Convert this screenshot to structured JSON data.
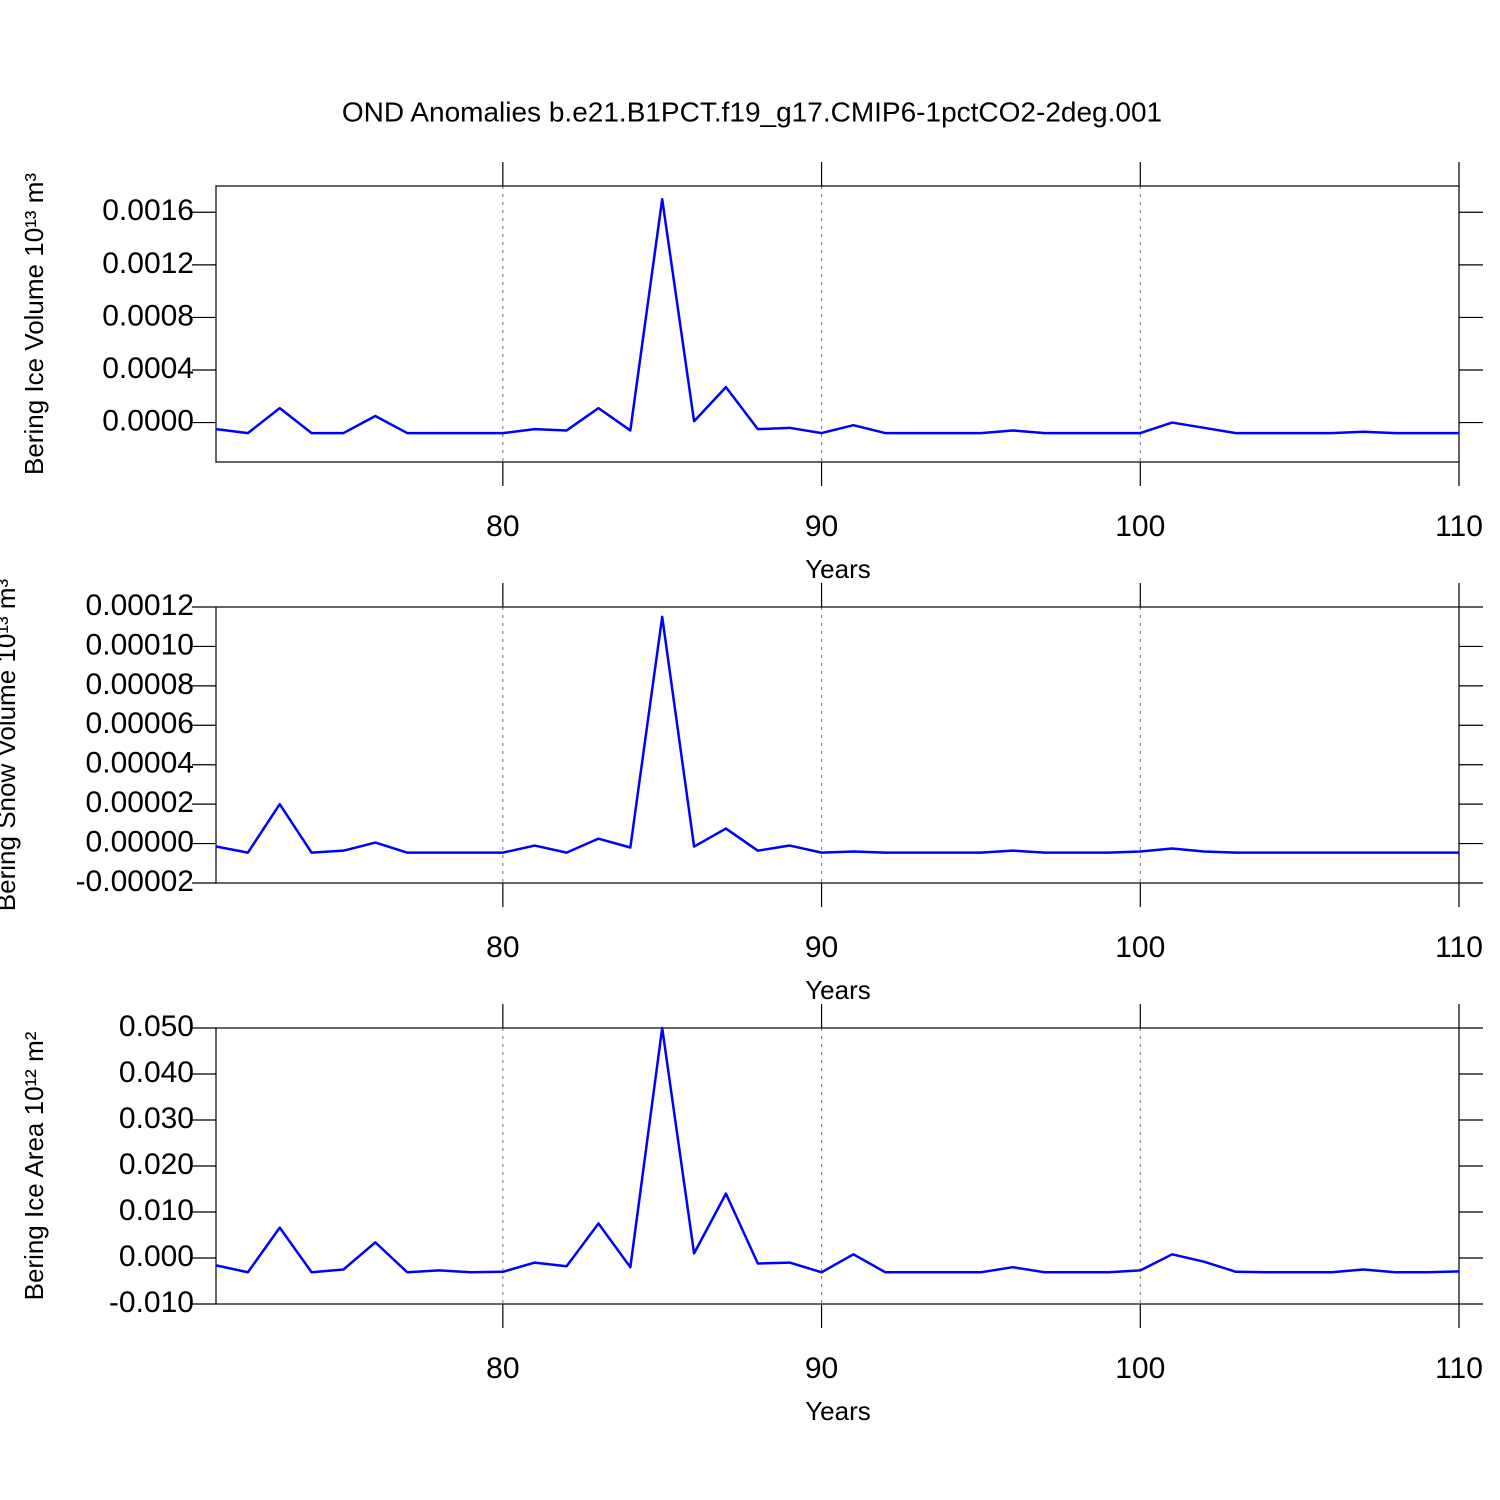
{
  "title": "OND Anomalies b.e21.B1PCT.f19_g17.CMIP6-1pctCO2-2deg.001",
  "chart_data": [
    {
      "type": "line",
      "xlabel": "Years",
      "ylabel": "Bering Ice Volume 10¹³ m³",
      "x": [
        71,
        72,
        73,
        74,
        75,
        76,
        77,
        78,
        79,
        80,
        81,
        82,
        83,
        84,
        85,
        86,
        87,
        88,
        89,
        90,
        91,
        92,
        93,
        94,
        95,
        96,
        97,
        98,
        99,
        100,
        101,
        102,
        103,
        104,
        105,
        106,
        107,
        108,
        109,
        110
      ],
      "xlim": [
        71,
        110
      ],
      "xticks": [
        80,
        90,
        100,
        110
      ],
      "grid": true,
      "ylim": [
        -0.0003,
        0.0018
      ],
      "yticks": [
        {
          "value": 0,
          "label": "0.0000"
        },
        0.0004,
        0.0008,
        0.0012,
        0.0016
      ],
      "series": [
        {
          "color": "#0000ff",
          "values": [
            -5e-05,
            -8e-05,
            0.00011,
            -8e-05,
            -8e-05,
            5e-05,
            -8e-05,
            -8e-05,
            -8e-05,
            -8e-05,
            -5e-05,
            -6e-05,
            0.00011,
            -6e-05,
            0.0017,
            1e-05,
            0.00027,
            -5e-05,
            -4e-05,
            -8e-05,
            -2e-05,
            -8e-05,
            -8e-05,
            -8e-05,
            -8e-05,
            -6e-05,
            -8e-05,
            -8e-05,
            -8e-05,
            -8e-05,
            0,
            -4e-05,
            -8e-05,
            -8e-05,
            -8e-05,
            -8e-05,
            -7e-05,
            -8e-05,
            -8e-05,
            -8e-05
          ]
        }
      ]
    },
    {
      "type": "line",
      "xlabel": "Years",
      "ylabel": "Bering Snow Volume 10¹³ m³",
      "x": [
        71,
        72,
        73,
        74,
        75,
        76,
        77,
        78,
        79,
        80,
        81,
        82,
        83,
        84,
        85,
        86,
        87,
        88,
        89,
        90,
        91,
        92,
        93,
        94,
        95,
        96,
        97,
        98,
        99,
        100,
        101,
        102,
        103,
        104,
        105,
        106,
        107,
        108,
        109,
        110
      ],
      "xlim": [
        71,
        110
      ],
      "xticks": [
        80,
        90,
        100,
        110
      ],
      "grid": true,
      "ylim": [
        -2e-05,
        0.00012
      ],
      "yticks": [
        -2e-05,
        {
          "value": 0,
          "label": "0.00000"
        },
        2e-05,
        4e-05,
        6e-05,
        8e-05,
        {
          "value": 0.0001,
          "label": "0.00010"
        },
        0.00012
      ],
      "series": [
        {
          "color": "#0000ff",
          "values": [
            -1.5e-06,
            -4.6e-06,
            2e-05,
            -4.6e-06,
            -3.6e-06,
            5e-07,
            -4.6e-06,
            -4.6e-06,
            -4.6e-06,
            -4.6e-06,
            -1e-06,
            -4.6e-06,
            2.5e-06,
            -2e-06,
            0.000115,
            -1.5e-06,
            7.6e-06,
            -3.6e-06,
            -1e-06,
            -4.6e-06,
            -4e-06,
            -4.6e-06,
            -4.6e-06,
            -4.6e-06,
            -4.6e-06,
            -3.6e-06,
            -4.6e-06,
            -4.6e-06,
            -4.6e-06,
            -4e-06,
            -2.5e-06,
            -4e-06,
            -4.6e-06,
            -4.6e-06,
            -4.6e-06,
            -4.6e-06,
            -4.6e-06,
            -4.6e-06,
            -4.6e-06,
            -4.6e-06
          ]
        }
      ]
    },
    {
      "type": "line",
      "xlabel": "Years",
      "ylabel": "Bering Ice Area 10¹² m²",
      "x": [
        71,
        72,
        73,
        74,
        75,
        76,
        77,
        78,
        79,
        80,
        81,
        82,
        83,
        84,
        85,
        86,
        87,
        88,
        89,
        90,
        91,
        92,
        93,
        94,
        95,
        96,
        97,
        98,
        99,
        100,
        101,
        102,
        103,
        104,
        105,
        106,
        107,
        108,
        109,
        110
      ],
      "xlim": [
        71,
        110
      ],
      "xticks": [
        80,
        90,
        100,
        110
      ],
      "grid": true,
      "ylim": [
        -0.01,
        0.05
      ],
      "yticks": [
        {
          "value": -0.01,
          "label": "-0.010"
        },
        {
          "value": 0,
          "label": "0.000"
        },
        {
          "value": 0.01,
          "label": "0.010"
        },
        {
          "value": 0.02,
          "label": "0.020"
        },
        {
          "value": 0.03,
          "label": "0.030"
        },
        {
          "value": 0.04,
          "label": "0.040"
        },
        {
          "value": 0.05,
          "label": "0.050"
        }
      ],
      "series": [
        {
          "color": "#0000ff",
          "values": [
            -0.0016,
            -0.0031,
            0.0066,
            -0.0031,
            -0.0025,
            0.0034,
            -0.0031,
            -0.0027,
            -0.0031,
            -0.003,
            -0.001,
            -0.0018,
            0.0075,
            -0.002,
            0.05,
            0.001,
            0.014,
            -0.0012,
            -0.001,
            -0.0031,
            0.0008,
            -0.0031,
            -0.0031,
            -0.0031,
            -0.0031,
            -0.002,
            -0.0031,
            -0.0031,
            -0.0031,
            -0.0027,
            0.0008,
            -0.0008,
            -0.003,
            -0.0031,
            -0.0031,
            -0.0031,
            -0.0025,
            -0.0031,
            -0.0031,
            -0.0029
          ]
        }
      ]
    }
  ]
}
